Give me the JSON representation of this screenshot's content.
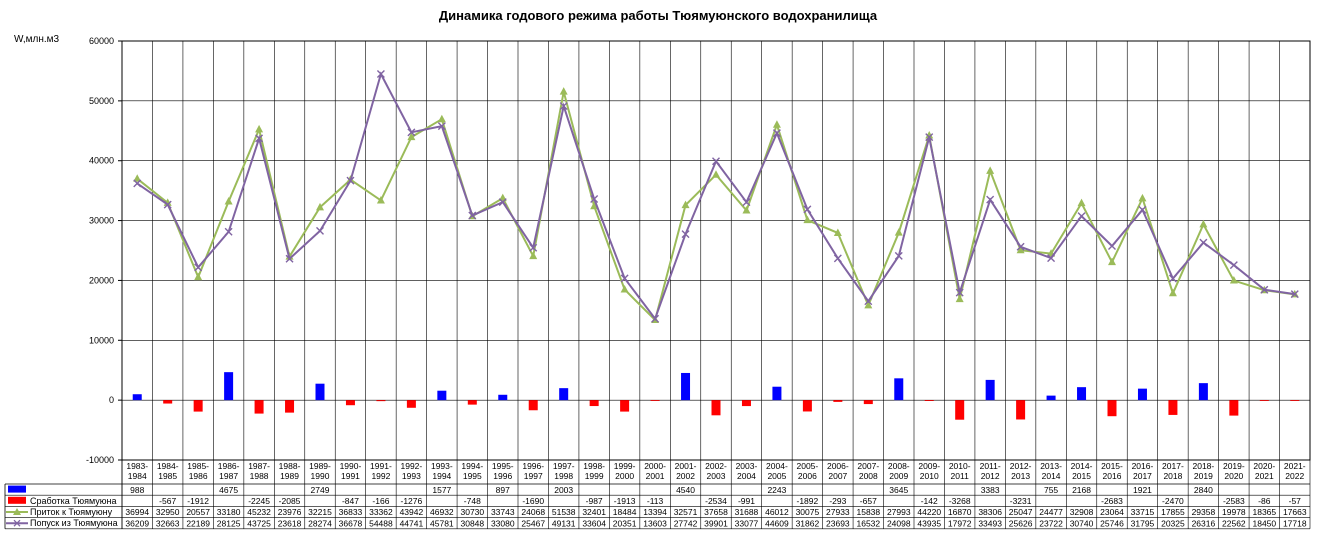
{
  "chart_data": {
    "type": "bar+line",
    "title": "Динамика годового режима работы  Тюямуюнского водохранилища",
    "ylabel": "W,млн.м3",
    "ylim": [
      -10000,
      60000
    ],
    "yticks": [
      "-10000",
      "0",
      "10000",
      "20000",
      "30000",
      "40000",
      "50000",
      "60000"
    ],
    "grid": true,
    "legend_placement": "bottom-left data table",
    "categories": [
      "1983-1984",
      "1984-1985",
      "1985-1986",
      "1986-1987",
      "1987-1988",
      "1988-1989",
      "1989-1990",
      "1990-1991",
      "1991-1992",
      "1992-1993",
      "1993-1994",
      "1994-1995",
      "1995-1996",
      "1996-1997",
      "1997-1998",
      "1998-1999",
      "1999-2000",
      "2000-2001",
      "2001-2002",
      "2002-2003",
      "2003-2004",
      "2004-2005",
      "2005-2006",
      "2006-2007",
      "2007-2008",
      "2008-2009",
      "2009-2010",
      "2010-2011",
      "2011-2012",
      "2012-2013",
      "2013-2014",
      "2014-2015",
      "2015-2016",
      "2016-2017",
      "2017-2018",
      "2018-2019",
      "2019-2020",
      "2020-2021",
      "2021-2022"
    ],
    "series": [
      {
        "name": "",
        "kind": "bar",
        "color": "#0000ff",
        "values": [
          988,
          null,
          null,
          4675,
          null,
          null,
          2749,
          null,
          null,
          null,
          1577,
          null,
          897,
          null,
          2003,
          null,
          null,
          null,
          4540,
          null,
          null,
          2243,
          null,
          null,
          null,
          3645,
          null,
          null,
          3383,
          null,
          755,
          2168,
          null,
          1921,
          null,
          2840,
          null,
          null,
          null
        ]
      },
      {
        "name": "Сработка  Тюямуюна",
        "kind": "bar",
        "color": "#ff0000",
        "values": [
          null,
          -567,
          -1912,
          null,
          -2245,
          -2085,
          null,
          -847,
          -166,
          -1276,
          null,
          -748,
          null,
          -1690,
          null,
          -987,
          -1913,
          -113,
          null,
          -2534,
          -991,
          null,
          -1892,
          -293,
          -657,
          null,
          -142,
          -3268,
          null,
          -3231,
          null,
          null,
          -2683,
          null,
          -2470,
          null,
          -2583,
          -86,
          -57
        ]
      },
      {
        "name": "Приток к Тюямуюну",
        "kind": "line",
        "color": "#9bbb59",
        "marker": "triangle",
        "values": [
          36994,
          32950,
          20557,
          33180,
          45232,
          23976,
          32215,
          36833,
          33362,
          43942,
          46932,
          30730,
          33743,
          24068,
          51538,
          32401,
          18484,
          13394,
          32571,
          37658,
          31688,
          46012,
          30075,
          27933,
          15838,
          27993,
          44220,
          16870,
          38306,
          25047,
          24477,
          32908,
          23064,
          33715,
          17855,
          29358,
          19978,
          18365,
          17663
        ]
      },
      {
        "name": "Попуск из Тюямуюна",
        "kind": "line",
        "color": "#8064a2",
        "marker": "x",
        "values": [
          36209,
          32663,
          22189,
          28125,
          43725,
          23618,
          28274,
          36678,
          54488,
          44741,
          45781,
          30848,
          33080,
          25467,
          49131,
          33604,
          20351,
          13603,
          27742,
          39901,
          33077,
          44609,
          31862,
          23693,
          16532,
          24098,
          43935,
          17972,
          33493,
          25626,
          23722,
          30740,
          25746,
          31795,
          20325,
          26316,
          22562,
          18450,
          17718
        ]
      }
    ]
  }
}
